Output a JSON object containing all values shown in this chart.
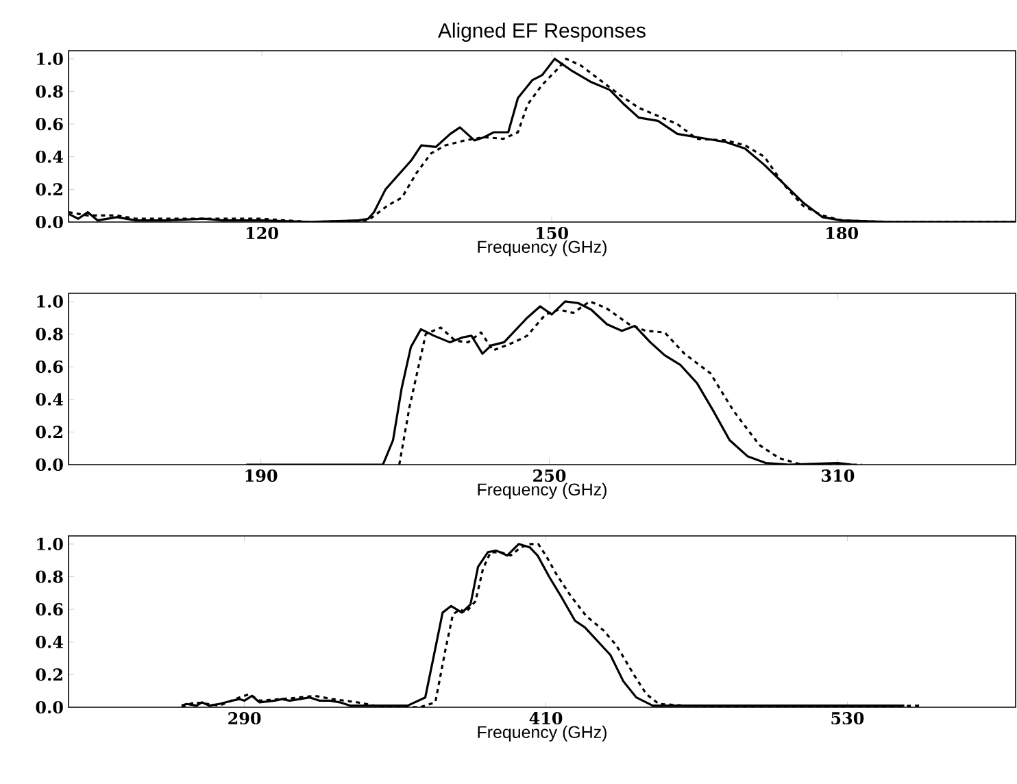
{
  "chart_data": [
    {
      "type": "line",
      "title": "Aligned EF Responses",
      "xlabel": "Frequency (GHz)",
      "xlim": [
        100,
        198
      ],
      "xticks": [
        120,
        150,
        180
      ],
      "ylim": [
        0,
        1.05
      ],
      "yticks": [
        {
          "value": 0,
          "label": "0.0"
        },
        {
          "value": 0.2,
          "label": "0.2"
        },
        {
          "value": 0.4,
          "label": "0.4"
        },
        {
          "value": 0.6,
          "label": "0.6"
        },
        {
          "value": 0.8,
          "label": "0.8"
        },
        {
          "value": 1.0,
          "label": "1.0"
        }
      ],
      "grid": false,
      "series": [
        {
          "color": "#000000",
          "line_style": "solid",
          "x": [
            100,
            101,
            102,
            103,
            105,
            107,
            110,
            114,
            116,
            120,
            125,
            130,
            131,
            131.6,
            132.8,
            134,
            135.5,
            136.5,
            138,
            139.5,
            140.5,
            142,
            143,
            144,
            145.5,
            146.5,
            148,
            149,
            150.3,
            152,
            154,
            156,
            157.5,
            159,
            161,
            163,
            166,
            168,
            170,
            172,
            176,
            178,
            180,
            185,
            198
          ],
          "values": [
            0.05,
            0.02,
            0.06,
            0.01,
            0.03,
            0.01,
            0.01,
            0.02,
            0.01,
            0.01,
            0.0,
            0.01,
            0.02,
            0.06,
            0.2,
            0.28,
            0.38,
            0.47,
            0.46,
            0.54,
            0.58,
            0.5,
            0.52,
            0.55,
            0.55,
            0.76,
            0.87,
            0.9,
            1.0,
            0.93,
            0.86,
            0.81,
            0.72,
            0.64,
            0.62,
            0.54,
            0.51,
            0.49,
            0.45,
            0.35,
            0.12,
            0.03,
            0.01,
            0.0,
            0.0
          ]
        },
        {
          "color": "#000000",
          "line_style": "dashed",
          "x": [
            100,
            102,
            105,
            107,
            120,
            125,
            131,
            133,
            134.5,
            136,
            137.5,
            139,
            141,
            143,
            145,
            146.5,
            147.5,
            149,
            150.8,
            151.5,
            153,
            155,
            157,
            159,
            161,
            163,
            165,
            168,
            170,
            172,
            174,
            176,
            178,
            180,
            185,
            198
          ],
          "values": [
            0.06,
            0.04,
            0.04,
            0.02,
            0.02,
            0.0,
            0.01,
            0.1,
            0.15,
            0.3,
            0.42,
            0.47,
            0.5,
            0.52,
            0.51,
            0.55,
            0.72,
            0.84,
            0.95,
            1.0,
            0.96,
            0.87,
            0.78,
            0.7,
            0.65,
            0.6,
            0.51,
            0.5,
            0.47,
            0.4,
            0.23,
            0.1,
            0.04,
            0.01,
            0.0,
            0.0
          ]
        }
      ]
    },
    {
      "type": "line",
      "xlabel": "Frequency (GHz)",
      "xlim": [
        150,
        347
      ],
      "xticks": [
        190,
        250,
        310
      ],
      "ylim": [
        0,
        1.05
      ],
      "yticks": [
        {
          "value": 0,
          "label": "0.0"
        },
        {
          "value": 0.2,
          "label": "0.2"
        },
        {
          "value": 0.4,
          "label": "0.4"
        },
        {
          "value": 0.6,
          "label": "0.6"
        },
        {
          "value": 0.8,
          "label": "0.8"
        },
        {
          "value": 1.0,
          "label": "1.0"
        }
      ],
      "grid": false,
      "series": [
        {
          "color": "#000000",
          "line_style": "solid",
          "x": [
            187,
            200,
            215.4,
            217.5,
            219.3,
            221.2,
            223.3,
            226,
            229.3,
            232,
            233.8,
            236.1,
            237.9,
            240.6,
            245.4,
            248.1,
            250.5,
            253.3,
            256,
            258.7,
            262,
            265.1,
            267.8,
            271,
            274,
            277.3,
            280.7,
            284.1,
            287.5,
            291.3,
            295,
            299.8,
            310,
            313
          ],
          "values": [
            0.0,
            0.0,
            0.0,
            0.15,
            0.47,
            0.72,
            0.83,
            0.79,
            0.75,
            0.78,
            0.79,
            0.68,
            0.73,
            0.75,
            0.9,
            0.97,
            0.92,
            1.0,
            0.99,
            0.95,
            0.86,
            0.82,
            0.85,
            0.75,
            0.67,
            0.61,
            0.5,
            0.33,
            0.15,
            0.05,
            0.01,
            0.0,
            0.01,
            0.0
          ]
        },
        {
          "color": "#000000",
          "line_style": "dashed",
          "x": [
            218.8,
            220.9,
            224.3,
            227.4,
            230.4,
            233.1,
            235.8,
            238.3,
            242.7,
            245.4,
            249.2,
            252,
            255,
            258.4,
            261.8,
            266.6,
            270,
            274,
            278.1,
            283.5,
            288.3,
            293.7,
            297.8,
            302.5,
            315
          ],
          "values": [
            0.0,
            0.35,
            0.8,
            0.84,
            0.76,
            0.75,
            0.81,
            0.7,
            0.75,
            0.79,
            0.92,
            0.95,
            0.93,
            1.0,
            0.96,
            0.86,
            0.82,
            0.81,
            0.68,
            0.56,
            0.33,
            0.12,
            0.04,
            0.0,
            0.0
          ]
        }
      ]
    },
    {
      "type": "line",
      "xlabel": "Frequency (GHz)",
      "xlim": [
        220,
        597
      ],
      "xticks": [
        290,
        410,
        530
      ],
      "ylim": [
        0,
        1.05
      ],
      "yticks": [
        {
          "value": 0,
          "label": "0.0"
        },
        {
          "value": 0.2,
          "label": "0.2"
        },
        {
          "value": 0.4,
          "label": "0.4"
        },
        {
          "value": 0.6,
          "label": "0.6"
        },
        {
          "value": 0.8,
          "label": "0.8"
        },
        {
          "value": 1.0,
          "label": "1.0"
        }
      ],
      "grid": false,
      "series": [
        {
          "color": "#000000",
          "line_style": "solid",
          "x": [
            265,
            267,
            271,
            273,
            276,
            280,
            285,
            288,
            290,
            293,
            296,
            302,
            305,
            308,
            312,
            316,
            320,
            324,
            328,
            332,
            340,
            355,
            362,
            365.6,
            368.9,
            372.3,
            376.6,
            380,
            383,
            386.9,
            390.2,
            394.6,
            399.2,
            403.6,
            406.7,
            411.3,
            416.4,
            421.6,
            425.5,
            435.7,
            440.8,
            446,
            452.5,
            475.6,
            501,
            552.7
          ],
          "values": [
            0.01,
            0.02,
            0.01,
            0.03,
            0.01,
            0.02,
            0.04,
            0.05,
            0.04,
            0.07,
            0.03,
            0.04,
            0.05,
            0.04,
            0.05,
            0.06,
            0.04,
            0.04,
            0.03,
            0.01,
            0.01,
            0.01,
            0.06,
            0.33,
            0.58,
            0.62,
            0.58,
            0.63,
            0.86,
            0.95,
            0.96,
            0.93,
            1.0,
            0.98,
            0.93,
            0.8,
            0.67,
            0.53,
            0.49,
            0.32,
            0.16,
            0.06,
            0.01,
            0.01,
            0.01,
            0.01
          ]
        },
        {
          "color": "#000000",
          "line_style": "dashed",
          "x": [
            265,
            270,
            280,
            288,
            292,
            296,
            305,
            312,
            318,
            325,
            335,
            345,
            360,
            366,
            370,
            373,
            376,
            378,
            382,
            385,
            388,
            392,
            396,
            400,
            404,
            407,
            410,
            414,
            420,
            426,
            433,
            438,
            440,
            445,
            450,
            455,
            465,
            500,
            530,
            560
          ],
          "values": [
            0.0,
            0.03,
            0.01,
            0.06,
            0.08,
            0.04,
            0.05,
            0.06,
            0.07,
            0.05,
            0.03,
            0.0,
            0.0,
            0.03,
            0.35,
            0.57,
            0.6,
            0.58,
            0.65,
            0.85,
            0.95,
            0.95,
            0.93,
            0.98,
            1.0,
            1.0,
            0.93,
            0.82,
            0.68,
            0.56,
            0.47,
            0.38,
            0.33,
            0.2,
            0.08,
            0.02,
            0.01,
            0.0,
            0.0,
            0.01
          ]
        }
      ]
    }
  ]
}
